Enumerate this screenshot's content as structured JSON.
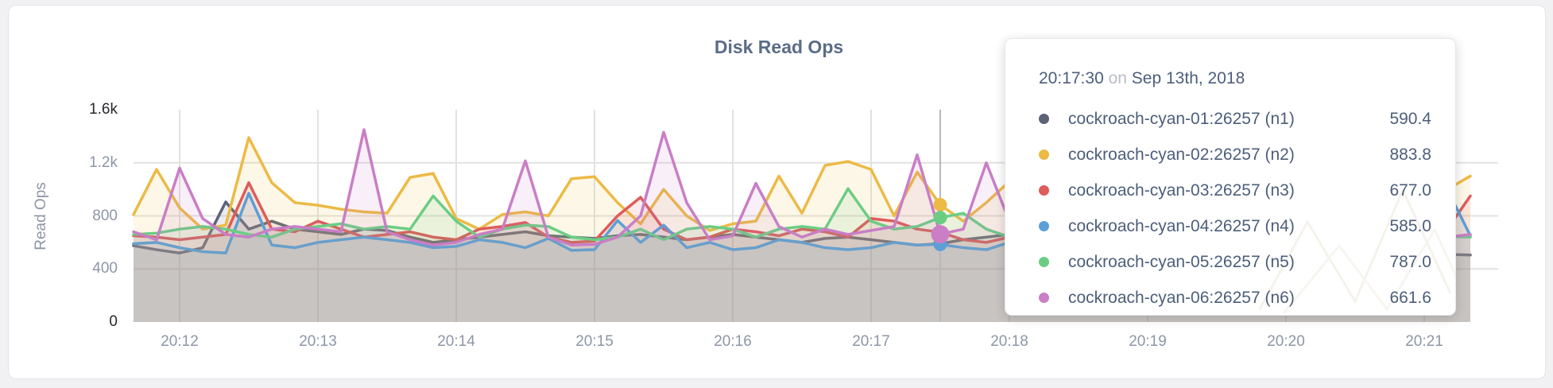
{
  "card": {
    "name": "disk-read-ops-panel"
  },
  "chart": {
    "title": "Disk Read Ops",
    "y_axis": {
      "label": "Read Ops",
      "ticks": [
        {
          "label": "1.6k",
          "value": 1600,
          "strong": true
        },
        {
          "label": "1.2k",
          "value": 1200,
          "strong": false
        },
        {
          "label": "800",
          "value": 800,
          "strong": false
        },
        {
          "label": "400",
          "value": 400,
          "strong": false
        },
        {
          "label": "0",
          "value": 0,
          "strong": true
        }
      ]
    },
    "x_axis": {
      "ticks": [
        "20:12",
        "20:13",
        "20:14",
        "20:15",
        "20:16",
        "20:17",
        "20:18",
        "20:19",
        "20:20",
        "20:21"
      ]
    }
  },
  "theme": {
    "page_bg": "#f1f1f3",
    "card_bg": "#ffffff",
    "grid_color": "#e2e2e0",
    "hover_line_color": "#b8b8b8",
    "axis_text": "#8d96a7",
    "axis_text_strong": "#25282d",
    "title_color": "#5a6c88",
    "tooltip_text": "#4d5e7a",
    "tooltip_muted": "#b9bec6"
  },
  "tooltip": {
    "time": "20:17:30",
    "on_word": "on",
    "date": "Sep 13th, 2018",
    "rows": [
      {
        "name": "cockroach-cyan-01:26257 (n1)",
        "value": "590.4",
        "color": "#5a6378"
      },
      {
        "name": "cockroach-cyan-02:26257 (n2)",
        "value": "883.8",
        "color": "#ecba45"
      },
      {
        "name": "cockroach-cyan-03:26257 (n3)",
        "value": "677.0",
        "color": "#dd5c5c"
      },
      {
        "name": "cockroach-cyan-04:26257 (n4)",
        "value": "585.0",
        "color": "#5b9fd6"
      },
      {
        "name": "cockroach-cyan-05:26257 (n5)",
        "value": "787.0",
        "color": "#6bcd84"
      },
      {
        "name": "cockroach-cyan-06:26257 (n6)",
        "value": "661.6",
        "color": "#c97ec6"
      }
    ]
  },
  "chart_data": {
    "type": "line",
    "title": "Disk Read Ops",
    "xlabel": "",
    "ylabel": "Read Ops",
    "ylim": [
      0,
      1600
    ],
    "grid": true,
    "x_start": "20:11:40",
    "x_step_seconds": 10,
    "x_ticks": [
      "20:12",
      "20:13",
      "20:14",
      "20:15",
      "20:16",
      "20:17",
      "20:18",
      "20:19",
      "20:20",
      "20:21"
    ],
    "highlight": {
      "time": "20:17:30",
      "date": "Sep 13th, 2018",
      "index": 35,
      "emphasized_series": "cockroach-cyan-06:26257 (n6)",
      "values": {
        "n1": 590.4,
        "n2": 883.8,
        "n3": 677.0,
        "n4": 585.0,
        "n5": 787.0,
        "n6": 661.6
      }
    },
    "series": [
      {
        "name": "cockroach-cyan-01:26257 (n1)",
        "short": "n1",
        "color": "#5a6378",
        "values": [
          575,
          545,
          520,
          560,
          905,
          700,
          760,
          700,
          680,
          660,
          700,
          690,
          640,
          600,
          620,
          640,
          660,
          680,
          650,
          640,
          630,
          650,
          660,
          640,
          620,
          640,
          660,
          640,
          620,
          600,
          630,
          640,
          620,
          600,
          580,
          590.4,
          620,
          640,
          660,
          620,
          600,
          620,
          640,
          620,
          600,
          620,
          640,
          620,
          600,
          620,
          640,
          620,
          600,
          580,
          560,
          540,
          525,
          510,
          505
        ]
      },
      {
        "name": "cockroach-cyan-02:26257 (n2)",
        "short": "n2",
        "color": "#ecba45",
        "values": [
          810,
          1150,
          860,
          700,
          730,
          1390,
          1050,
          900,
          880,
          850,
          830,
          820,
          1090,
          1120,
          780,
          700,
          810,
          830,
          800,
          1080,
          1095,
          900,
          740,
          1000,
          800,
          690,
          740,
          760,
          1100,
          820,
          1180,
          1210,
          1150,
          800,
          1130,
          883.8,
          760,
          900,
          1060,
          900,
          780,
          850,
          1000,
          820,
          760,
          900,
          1050,
          800,
          740,
          860,
          950,
          800,
          760,
          880,
          1020,
          780,
          880,
          1000,
          1100
        ]
      },
      {
        "name": "cockroach-cyan-03:26257 (n3)",
        "short": "n3",
        "color": "#dd5c5c",
        "values": [
          650,
          640,
          620,
          640,
          660,
          1050,
          700,
          680,
          760,
          700,
          640,
          660,
          680,
          640,
          620,
          700,
          720,
          750,
          640,
          600,
          610,
          800,
          940,
          700,
          620,
          640,
          700,
          680,
          650,
          700,
          680,
          640,
          780,
          760,
          700,
          677,
          620,
          600,
          640,
          700,
          680,
          640,
          620,
          660,
          700,
          640,
          620,
          680,
          640,
          620,
          660,
          640,
          700,
          660,
          620,
          640,
          640,
          700,
          950
        ]
      },
      {
        "name": "cockroach-cyan-04:26257 (n4)",
        "short": "n4",
        "color": "#5b9fd6",
        "values": [
          590,
          600,
          560,
          530,
          520,
          970,
          580,
          560,
          600,
          620,
          640,
          620,
          600,
          560,
          570,
          620,
          600,
          560,
          630,
          540,
          545,
          765,
          600,
          730,
          560,
          600,
          545,
          560,
          620,
          600,
          560,
          545,
          560,
          600,
          580,
          585,
          560,
          545,
          600,
          560,
          580,
          600,
          560,
          540,
          580,
          600,
          560,
          545,
          580,
          600,
          560,
          580,
          545,
          560,
          600,
          580,
          620,
          1000,
          650
        ]
      },
      {
        "name": "cockroach-cyan-05:26257 (n5)",
        "short": "n5",
        "color": "#6bcd84",
        "values": [
          660,
          670,
          700,
          720,
          700,
          660,
          640,
          700,
          720,
          740,
          700,
          720,
          700,
          950,
          760,
          640,
          700,
          730,
          720,
          640,
          620,
          640,
          700,
          620,
          700,
          720,
          700,
          640,
          700,
          720,
          700,
          1005,
          760,
          700,
          720,
          787,
          820,
          700,
          640,
          700,
          720,
          700,
          680,
          700,
          720,
          700,
          680,
          700,
          720,
          700,
          680,
          700,
          720,
          700,
          680,
          660,
          650,
          645,
          640
        ]
      },
      {
        "name": "cockroach-cyan-06:26257 (n6)",
        "short": "n6",
        "color": "#c97ec6",
        "values": [
          680,
          620,
          1160,
          780,
          660,
          640,
          700,
          720,
          700,
          680,
          1450,
          680,
          620,
          580,
          600,
          660,
          700,
          1215,
          640,
          580,
          585,
          640,
          800,
          1430,
          900,
          620,
          650,
          1045,
          720,
          640,
          700,
          660,
          690,
          720,
          1260,
          661.6,
          700,
          1200,
          760,
          640,
          660,
          700,
          650,
          680,
          900,
          650,
          640,
          700,
          680,
          640,
          700,
          660,
          640,
          690,
          660,
          640,
          650,
          640,
          660
        ]
      }
    ]
  }
}
